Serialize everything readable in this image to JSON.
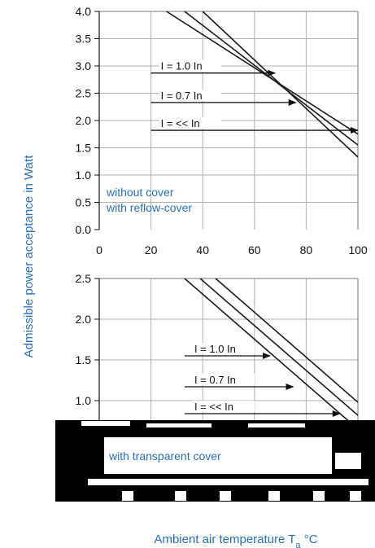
{
  "colors": {
    "accent": "#2a6fb5",
    "curve": "#1a1a1a",
    "grid": "#b0b0b0"
  },
  "y_axis_title": "Admissible power acceptance in Watt",
  "x_axis_title": "Ambient air temperature T",
  "x_axis_title_sub": "a",
  "x_axis_title_unit": " °C",
  "chart_data": [
    {
      "type": "line",
      "x_ticks": [
        "0",
        "20",
        "40",
        "60",
        "80",
        "100"
      ],
      "y_ticks": [
        "0.0",
        "0.5",
        "1.0",
        "1.5",
        "2.0",
        "2.5",
        "3.0",
        "3.5",
        "4.0"
      ],
      "xlim": [
        0,
        100
      ],
      "ylim": [
        0,
        4
      ],
      "grid": true,
      "series": [
        {
          "label": "I = 1.0 In",
          "x": [
            26,
            100
          ],
          "y": [
            4.0,
            1.75
          ]
        },
        {
          "label": "I = 0.7 In",
          "x": [
            33,
            100
          ],
          "y": [
            4.0,
            1.55
          ]
        },
        {
          "label": "I = << In",
          "x": [
            40,
            100
          ],
          "y": [
            4.0,
            1.33
          ]
        }
      ],
      "annotations": [
        {
          "text": "I = 1.0 In",
          "from_x": 20,
          "to_x": 68,
          "y": 2.87
        },
        {
          "text": "I = 0.7 In",
          "from_x": 20,
          "to_x": 76,
          "y": 2.33
        },
        {
          "text": "I = << In",
          "from_x": 20,
          "to_x": 100,
          "y": 1.82
        }
      ],
      "notes": [
        "without cover",
        "with reflow-cover"
      ]
    },
    {
      "type": "line",
      "x_ticks": [],
      "y_ticks": [
        "1.0",
        "1.5",
        "2.0",
        "2.5"
      ],
      "xlim": [
        0,
        100
      ],
      "ylim": [
        0.75,
        2.5
      ],
      "grid": true,
      "series": [
        {
          "label": "I = 1.0 In",
          "x": [
            39,
            100
          ],
          "y": [
            2.5,
            0.82
          ]
        },
        {
          "label": "I = 0.7 In",
          "x": [
            45,
            100
          ],
          "y": [
            2.5,
            0.98
          ]
        },
        {
          "label": "I = << In",
          "x": [
            33,
            100
          ],
          "y": [
            2.5,
            0.65
          ]
        }
      ],
      "annotations": [
        {
          "text": "I = 1.0 In",
          "from_x": 33,
          "to_x": 66,
          "y": 1.55
        },
        {
          "text": "I = 0.7 In",
          "from_x": 33,
          "to_x": 75,
          "y": 1.17
        },
        {
          "text": "I = << In",
          "from_x": 33,
          "to_x": 93,
          "y": 0.84
        }
      ],
      "notes": [
        "with transparent cover"
      ]
    }
  ]
}
